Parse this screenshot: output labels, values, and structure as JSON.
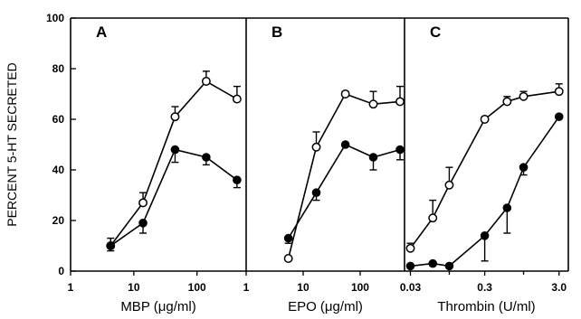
{
  "figure": {
    "ylabel": "PERCENT 5-HT SECRETED"
  },
  "chart_data": [
    {
      "type": "line",
      "panel_label": "A",
      "xlabel": "MBP (μg/ml)",
      "xscale": "log",
      "xlim": [
        1,
        600
      ],
      "xticks": [
        1,
        10,
        100
      ],
      "xtick_labels": [
        "1",
        "10",
        "100"
      ],
      "ylim": [
        0,
        100
      ],
      "yticks": [
        0,
        20,
        40,
        60,
        80,
        100
      ],
      "ytick_labels": [
        "0",
        "20",
        "40",
        "60",
        "80",
        "100"
      ],
      "series": [
        {
          "marker": "open-circle",
          "points": [
            {
              "x": 4.3,
              "y": 10,
              "err": 3
            },
            {
              "x": 14,
              "y": 27,
              "err": 4
            },
            {
              "x": 45,
              "y": 61,
              "err": 4
            },
            {
              "x": 140,
              "y": 75,
              "err": 4
            },
            {
              "x": 430,
              "y": 68,
              "err": 5
            }
          ]
        },
        {
          "marker": "filled-circle",
          "points": [
            {
              "x": 4.3,
              "y": 10,
              "err": 2
            },
            {
              "x": 14,
              "y": 19,
              "err": 4
            },
            {
              "x": 45,
              "y": 48,
              "err": 5
            },
            {
              "x": 140,
              "y": 45,
              "err": 3
            },
            {
              "x": 430,
              "y": 36,
              "err": 3
            }
          ]
        }
      ]
    },
    {
      "type": "line",
      "panel_label": "B",
      "xlabel": "EPO (μg/ml)",
      "xscale": "log",
      "xlim": [
        1,
        600
      ],
      "xticks": [
        1,
        10,
        100
      ],
      "xtick_labels": [
        "1",
        "10",
        "100"
      ],
      "ylim": [
        0,
        100
      ],
      "series": [
        {
          "marker": "open-circle",
          "points": [
            {
              "x": 5.5,
              "y": 5,
              "err": 0
            },
            {
              "x": 17,
              "y": 49,
              "err": 6
            },
            {
              "x": 55,
              "y": 70,
              "err": 1
            },
            {
              "x": 170,
              "y": 66,
              "err": 5
            },
            {
              "x": 500,
              "y": 67,
              "err": 6
            }
          ]
        },
        {
          "marker": "filled-circle",
          "points": [
            {
              "x": 5.5,
              "y": 13,
              "err": 2
            },
            {
              "x": 17,
              "y": 31,
              "err": 3
            },
            {
              "x": 55,
              "y": 50,
              "err": 0
            },
            {
              "x": 170,
              "y": 45,
              "err": 5
            },
            {
              "x": 500,
              "y": 48,
              "err": 4
            }
          ]
        }
      ]
    },
    {
      "type": "line",
      "panel_label": "C",
      "xlabel": "Thrombin (U/ml)",
      "xscale": "log",
      "xlim": [
        0.025,
        4
      ],
      "xticks": [
        0.03,
        0.3,
        3.0
      ],
      "xtick_labels": [
        "0.03",
        "0.3",
        "3.0"
      ],
      "minor_xticks": [
        0.1,
        1.0
      ],
      "ylim": [
        0,
        100
      ],
      "series": [
        {
          "marker": "open-circle",
          "points": [
            {
              "x": 0.03,
              "y": 9,
              "err": 2
            },
            {
              "x": 0.06,
              "y": 21,
              "err": 7
            },
            {
              "x": 0.1,
              "y": 34,
              "err": 7
            },
            {
              "x": 0.3,
              "y": 60,
              "err": 1
            },
            {
              "x": 0.6,
              "y": 67,
              "err": 2
            },
            {
              "x": 1.0,
              "y": 69,
              "err": 2
            },
            {
              "x": 3.0,
              "y": 71,
              "err": 3
            }
          ]
        },
        {
          "marker": "filled-circle",
          "points": [
            {
              "x": 0.03,
              "y": 2,
              "err": 0
            },
            {
              "x": 0.06,
              "y": 3,
              "err": 0
            },
            {
              "x": 0.1,
              "y": 2,
              "err": 0
            },
            {
              "x": 0.3,
              "y": 14,
              "err": 10
            },
            {
              "x": 0.6,
              "y": 25,
              "err": 10
            },
            {
              "x": 1.0,
              "y": 41,
              "err": 3
            },
            {
              "x": 3.0,
              "y": 61,
              "err": 0
            }
          ]
        }
      ]
    }
  ]
}
